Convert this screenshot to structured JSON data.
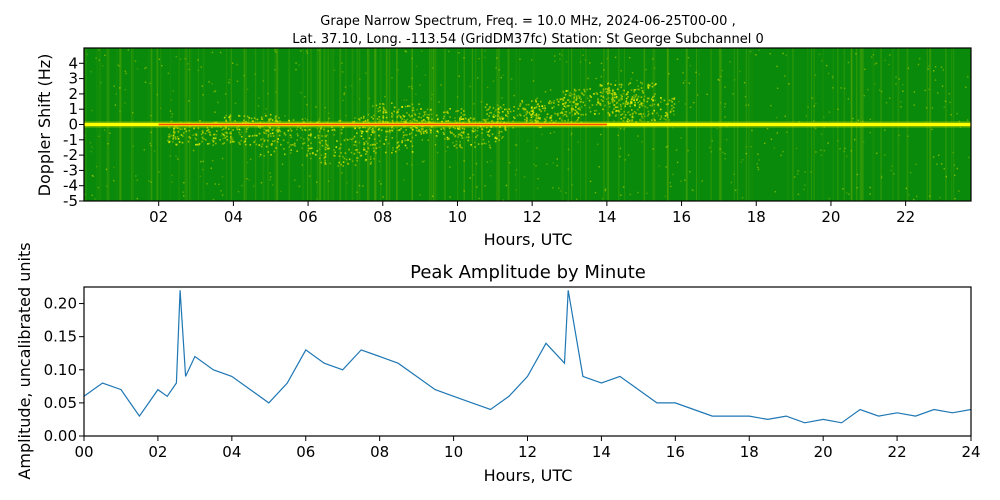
{
  "figure": {
    "title_line1": "Grape Narrow Spectrum, Freq. = 10.0 MHz, 2024-06-25T00-00 ,",
    "title_line2": "Lat.  37.10, Long. -113.54 (GridDM37fc) Station: St George Subchannel 0"
  },
  "chart_data": [
    {
      "type": "heatmap",
      "xlabel": "Hours, UTC",
      "ylabel": "Doppler Shift (Hz)",
      "xlim": [
        0,
        23.75
      ],
      "ylim": [
        -5,
        5
      ],
      "xticks": [
        2,
        4,
        6,
        8,
        10,
        12,
        14,
        16,
        18,
        20,
        22
      ],
      "xtick_labels": [
        "02",
        "04",
        "06",
        "08",
        "10",
        "12",
        "14",
        "16",
        "18",
        "20",
        "22"
      ],
      "yticks": [
        4,
        3,
        2,
        1,
        0,
        -1,
        -2,
        -3,
        -4,
        -5
      ],
      "ytick_labels": [
        "4",
        "3",
        "2",
        "1",
        "0",
        "-1",
        "-2",
        "-3",
        "-4",
        "-5"
      ],
      "colors": {
        "background": "#0a8a0a",
        "mid": "#c8d800",
        "high": "#ffff00",
        "peak": "#ff2000"
      },
      "carrier_doppler_hz": 0,
      "grid": false
    },
    {
      "type": "line",
      "title": "Peak Amplitude by Minute",
      "xlabel": "Hours, UTC",
      "ylabel": "Amplitude, uncalibrated units",
      "xlim": [
        0,
        24
      ],
      "ylim": [
        0,
        0.225
      ],
      "xticks": [
        0,
        2,
        4,
        6,
        8,
        10,
        12,
        14,
        16,
        18,
        20,
        22,
        24
      ],
      "xtick_labels": [
        "00",
        "02",
        "04",
        "06",
        "08",
        "10",
        "12",
        "14",
        "16",
        "18",
        "20",
        "22",
        "24"
      ],
      "yticks": [
        0.0,
        0.05,
        0.1,
        0.15,
        0.2
      ],
      "ytick_labels": [
        "0.00",
        "0.05",
        "0.10",
        "0.15",
        "0.20"
      ],
      "line_color": "#1f77b4",
      "grid": false,
      "x": [
        0,
        0.5,
        1.0,
        1.25,
        1.5,
        1.75,
        2.0,
        2.25,
        2.5,
        2.6,
        2.75,
        3.0,
        3.5,
        4.0,
        4.5,
        5.0,
        5.5,
        6.0,
        6.5,
        7.0,
        7.5,
        8.0,
        8.5,
        9.0,
        9.5,
        10.0,
        10.5,
        11.0,
        11.5,
        12.0,
        12.5,
        13.0,
        13.1,
        13.5,
        14.0,
        14.5,
        15.0,
        15.5,
        16.0,
        16.5,
        17.0,
        17.5,
        18.0,
        18.5,
        19.0,
        19.5,
        20.0,
        20.5,
        21.0,
        21.5,
        22.0,
        22.5,
        23.0,
        23.5,
        24.0
      ],
      "y": [
        0.06,
        0.08,
        0.07,
        0.05,
        0.03,
        0.05,
        0.07,
        0.06,
        0.08,
        0.22,
        0.09,
        0.12,
        0.1,
        0.09,
        0.07,
        0.05,
        0.08,
        0.13,
        0.11,
        0.1,
        0.13,
        0.12,
        0.11,
        0.09,
        0.07,
        0.06,
        0.05,
        0.04,
        0.06,
        0.09,
        0.14,
        0.11,
        0.22,
        0.09,
        0.08,
        0.09,
        0.07,
        0.05,
        0.05,
        0.04,
        0.03,
        0.03,
        0.03,
        0.025,
        0.03,
        0.02,
        0.025,
        0.02,
        0.04,
        0.03,
        0.035,
        0.03,
        0.04,
        0.035,
        0.04
      ]
    }
  ]
}
